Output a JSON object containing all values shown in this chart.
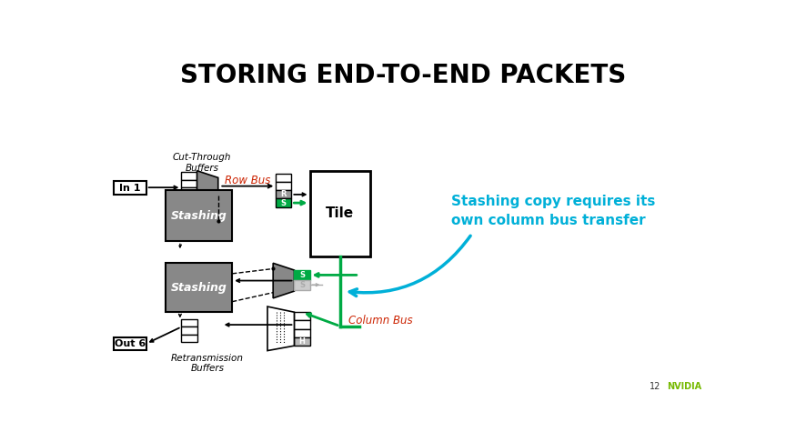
{
  "title": "STORING END-TO-END PACKETS",
  "title_fontsize": 20,
  "title_fontweight": "bold",
  "bg_color": "#ffffff",
  "annotation_text": "Stashing copy requires its\nown column bus transfer",
  "annotation_color": "#00b0d8",
  "annotation_fontsize": 11,
  "row_bus_label": "Row Bus",
  "col_bus_label": "Column Bus",
  "bus_label_color": "#cc2200",
  "cut_through_label": "Cut-Through\nBuffers",
  "retrans_label": "Retransmission\nBuffers",
  "stashing_label": "Stashing",
  "tile_label": "Tile",
  "in1_label": "In 1",
  "out6_label": "Out 6",
  "slide_num": "12",
  "gray_fill": "#888888",
  "green_color": "#00aa44",
  "light_gray_fill": "#bbbbbb",
  "r_label_fill": "#999999"
}
